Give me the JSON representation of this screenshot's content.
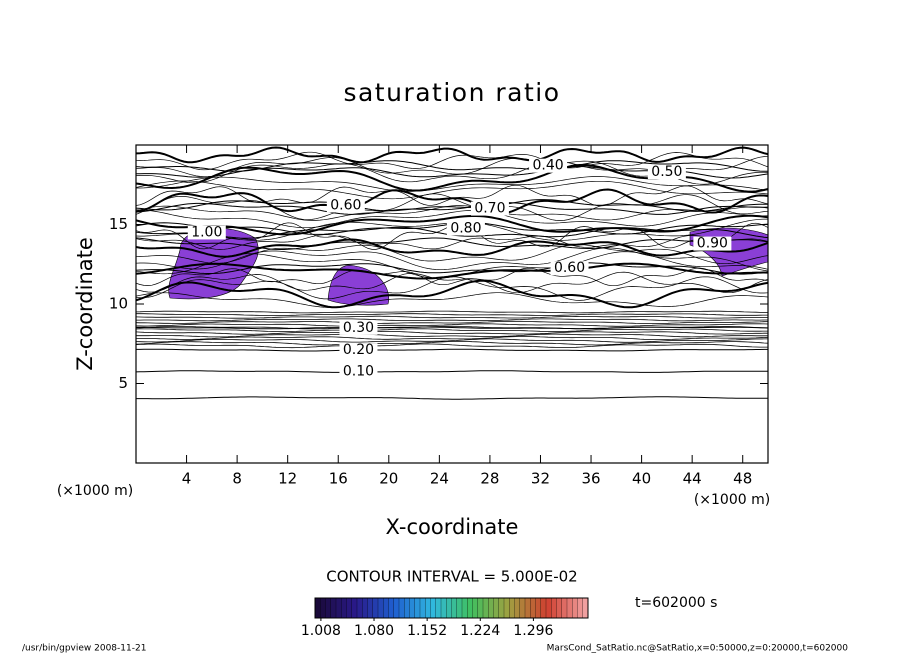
{
  "chart_data": {
    "type": "contour",
    "title": "saturation ratio",
    "x_label": "X-coordinate",
    "y_label": "Z-coordinate",
    "x_unit": "(×1000 m)",
    "y_unit": "(×1000 m)",
    "xlim": [
      0,
      50
    ],
    "ylim": [
      0,
      20
    ],
    "xticks": [
      4,
      8,
      12,
      16,
      20,
      24,
      28,
      32,
      36,
      40,
      44,
      48
    ],
    "yticks": [
      5,
      10,
      15
    ],
    "contour_interval": "CONTOUR INTERVAL = 5.000E-02",
    "contour_labels": [
      {
        "value": 0.1,
        "label": "0.10",
        "x": 17.6,
        "z": 5.75
      },
      {
        "value": 0.2,
        "label": "0.20",
        "x": 17.6,
        "z": 7.1
      },
      {
        "value": 0.3,
        "label": "0.30",
        "x": 17.6,
        "z": 8.5
      },
      {
        "value": 0.4,
        "label": "0.40",
        "x": 32.6,
        "z": 18.7
      },
      {
        "value": 0.5,
        "label": "0.50",
        "x": 42.0,
        "z": 18.3
      },
      {
        "value": 0.6,
        "label": "0.60",
        "x": 16.6,
        "z": 16.2
      },
      {
        "value": 0.7,
        "label": "0.70",
        "x": 28.0,
        "z": 16.0
      },
      {
        "value": 0.8,
        "label": "0.80",
        "x": 26.1,
        "z": 14.75
      },
      {
        "value": 0.9,
        "label": "0.90",
        "x": 45.6,
        "z": 13.8
      },
      {
        "value": 1.0,
        "label": "1.00",
        "x": 5.6,
        "z": 14.5
      },
      {
        "value": 0.6,
        "label": "0.60",
        "x": 34.3,
        "z": 12.25
      }
    ],
    "colorbar": {
      "clim": [
        1.0,
        1.37
      ],
      "colormap": [
        "#1a0a3a",
        "#2a1a8a",
        "#1f5fd0",
        "#30b8e0",
        "#40c060",
        "#a0a040",
        "#d04030",
        "#f0a0a0"
      ],
      "ticks": [
        1.008,
        {
          "value": 1.08,
          "label": "1.080"
        },
        1.152,
        1.224,
        1.296
      ]
    },
    "region_color": "#8a3fd6",
    "time_label": "t=602000 s",
    "footer_left": "/usr/bin/gpview  2008-11-21",
    "footer_right": "MarsCond_SatRatio.nc@SatRatio,x=0:50000,z=0:20000,t=602000"
  }
}
